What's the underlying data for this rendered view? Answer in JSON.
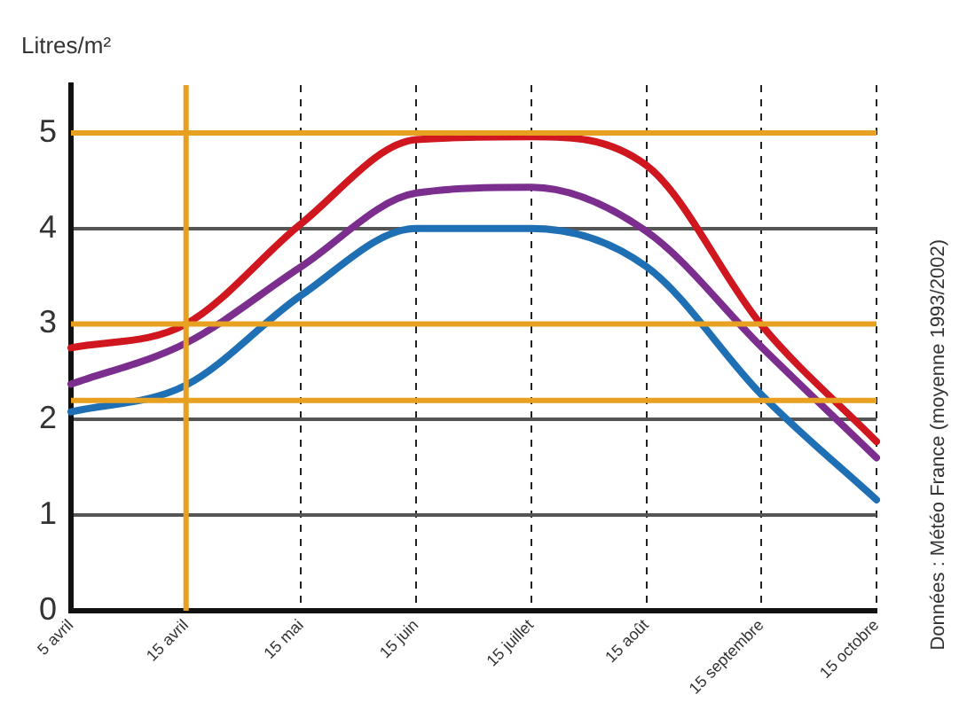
{
  "chart_data": {
    "type": "line",
    "ylabel": "Litres/m²",
    "annotations": [
      "Données : Météo France (moyenne 1993/2002)"
    ],
    "categories": [
      "5 avril",
      "15 avril",
      "15 mai",
      "15 juin",
      "15 juillet",
      "15 août",
      "15 septembre",
      "15 octobre"
    ],
    "ylim": [
      0,
      5.5
    ],
    "yticks": [
      0,
      1,
      2,
      3,
      4,
      5
    ],
    "grid": true,
    "legend": false,
    "marker": "none",
    "line_style": "solid",
    "ref_lines": [
      {
        "axis": "y",
        "value": 5,
        "color": "#e8a020"
      },
      {
        "axis": "y",
        "value": 3,
        "color": "#e8a020"
      },
      {
        "axis": "y",
        "value": 2.2,
        "color": "#e8a020"
      },
      {
        "axis": "x",
        "value": "15 avril",
        "color": "#e8a020"
      }
    ],
    "series": [
      {
        "color": "#d0161e",
        "values": [
          2.75,
          3.0,
          4.05,
          4.93,
          4.96,
          4.66,
          2.99,
          1.77
        ]
      },
      {
        "color": "#7b2e8e",
        "values": [
          2.37,
          2.8,
          3.6,
          4.37,
          4.43,
          3.97,
          2.76,
          1.6
        ]
      },
      {
        "color": "#1f6fb5",
        "values": [
          2.08,
          2.36,
          3.3,
          4.0,
          4.0,
          3.6,
          2.26,
          1.16
        ]
      }
    ]
  }
}
